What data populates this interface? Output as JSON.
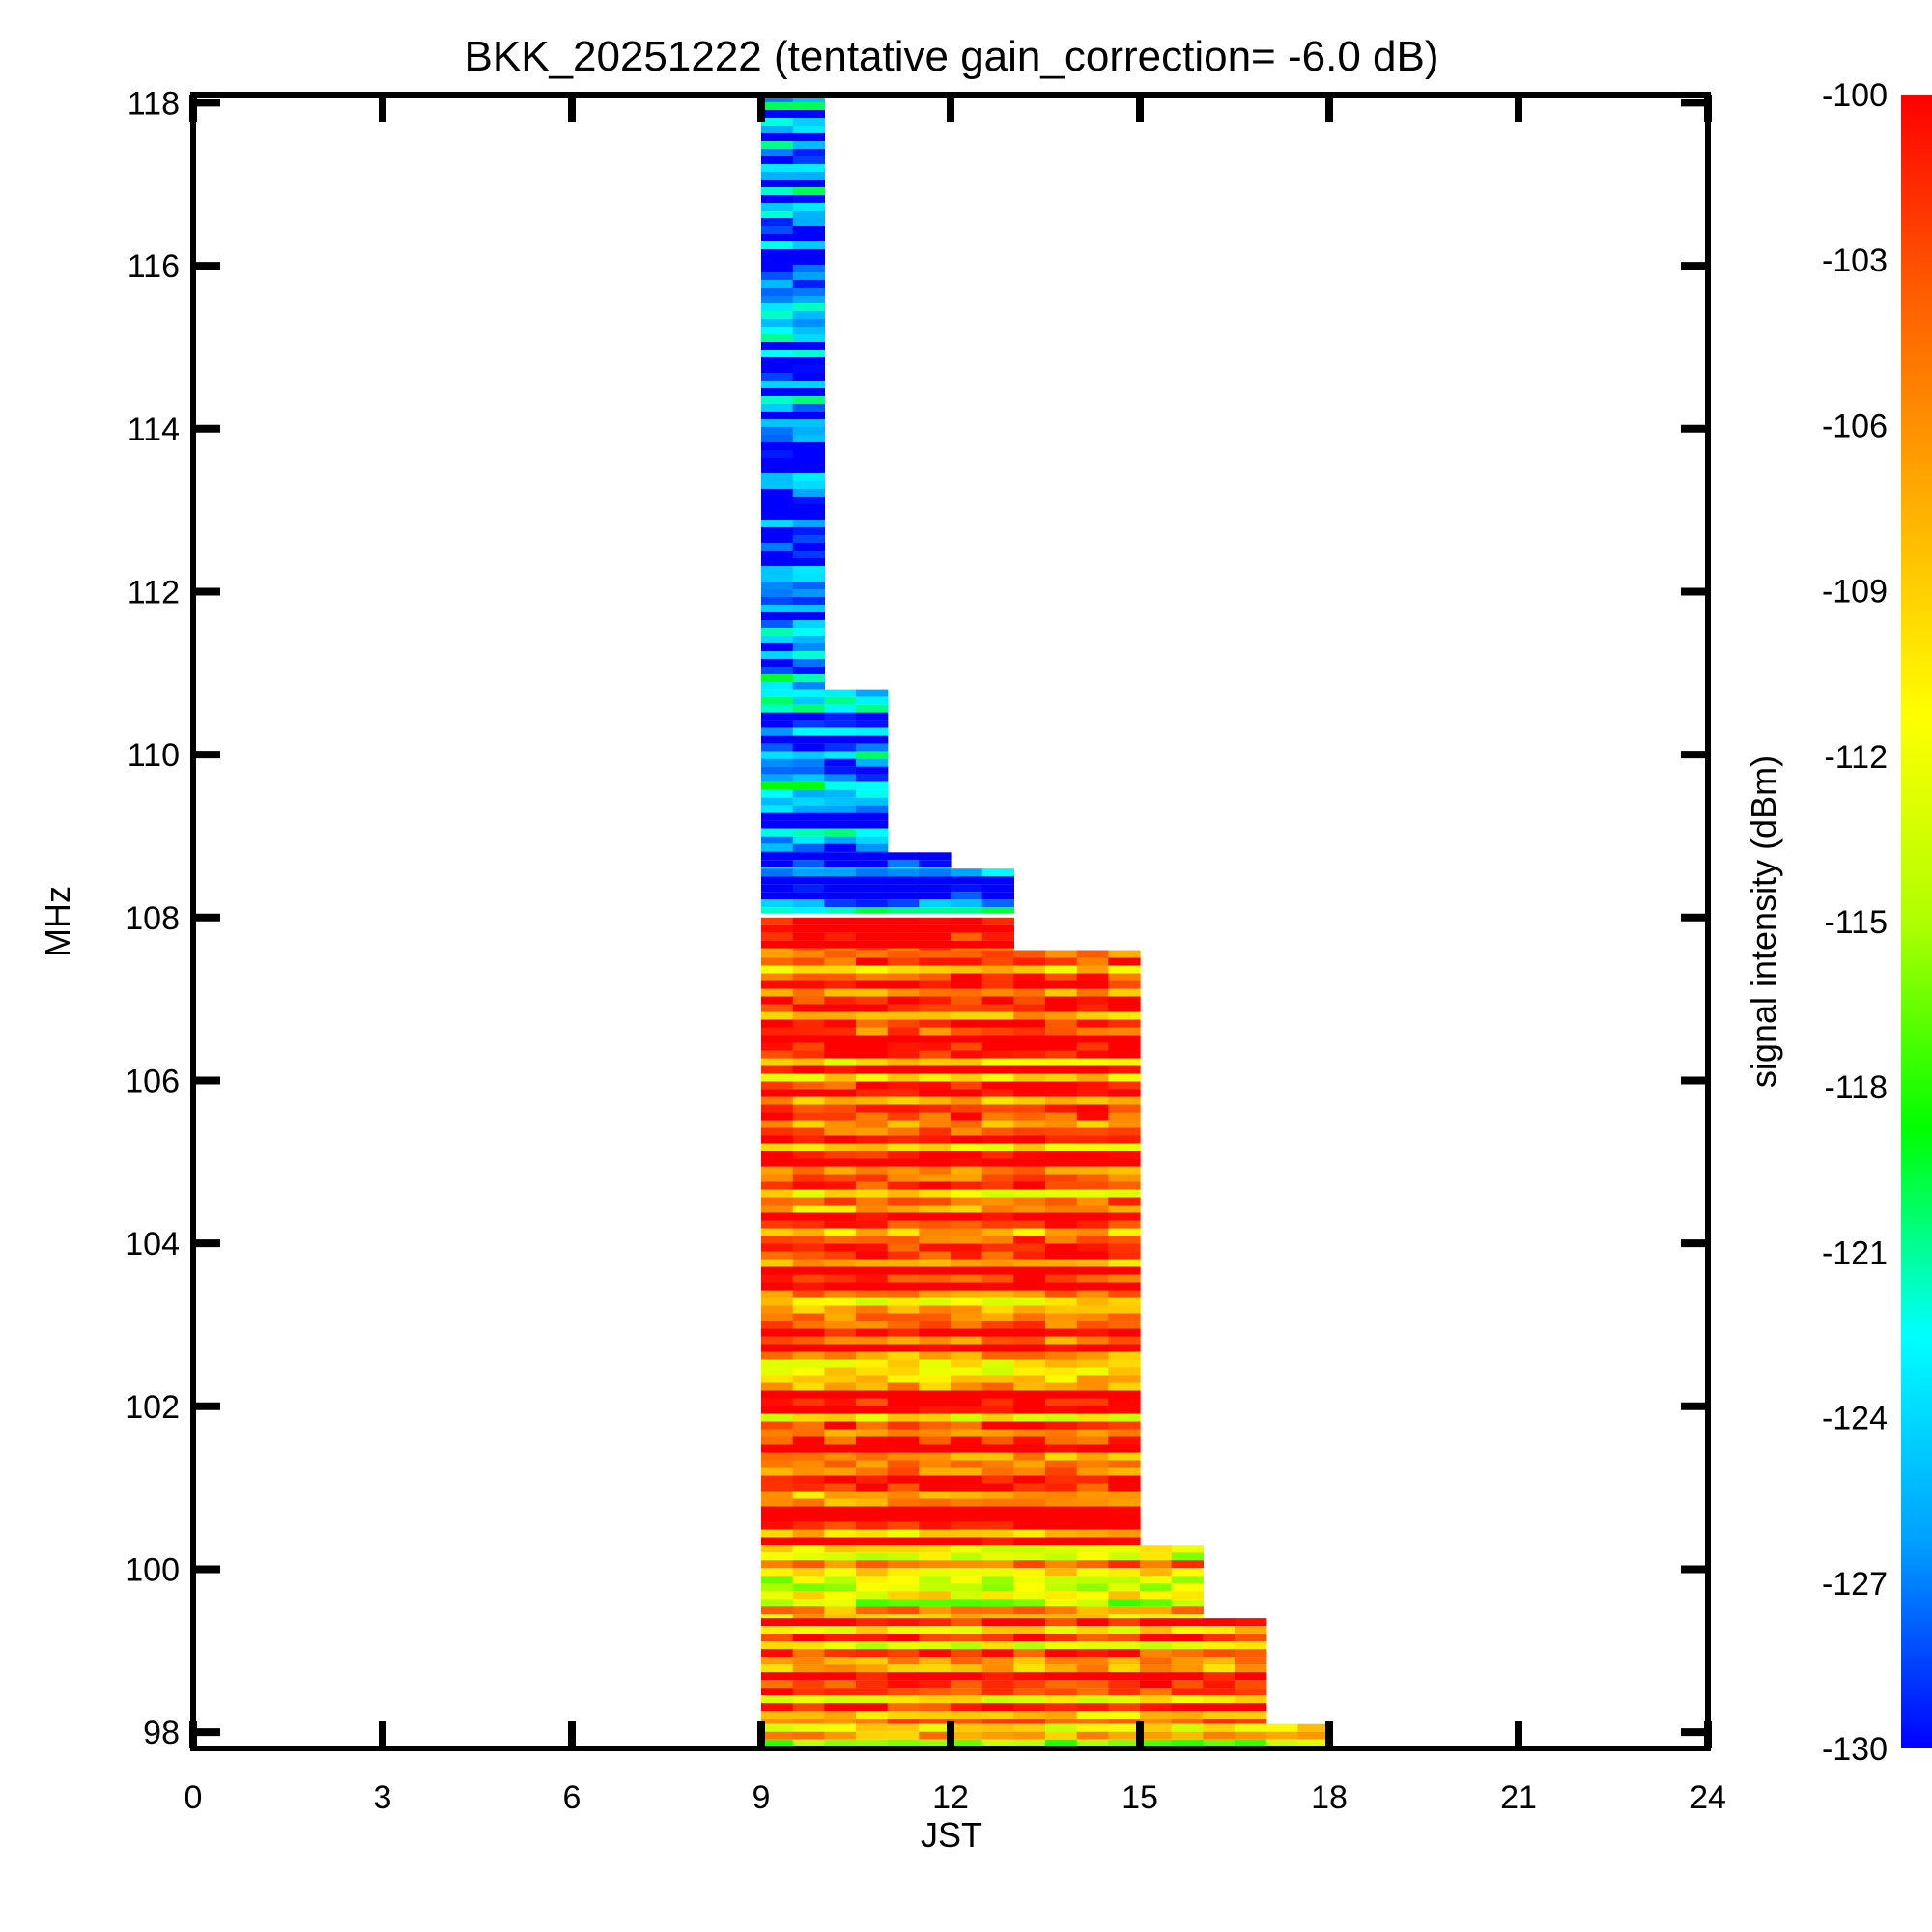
{
  "chart_data": {
    "type": "heatmap",
    "title": "BKK_20251222 (tentative gain_correction= -6.0 dB)",
    "xlabel": "JST",
    "ylabel": "MHz",
    "colorbar_label": "signal intensity (dBm)",
    "xlim": [
      0,
      24
    ],
    "ylim": [
      97.8,
      118.1
    ],
    "xticks": [
      "0",
      "3",
      "6",
      "9",
      "12",
      "15",
      "18",
      "21",
      "24"
    ],
    "yticks": [
      "98",
      "100",
      "102",
      "104",
      "106",
      "108",
      "110",
      "112",
      "114",
      "116",
      "118"
    ],
    "colorbar_range": [
      -130,
      -100
    ],
    "colorbar_ticks": [
      "-100",
      "-103",
      "-106",
      "-109",
      "-112",
      "-115",
      "-118",
      "-121",
      "-124",
      "-127",
      "-130"
    ],
    "colormap": [
      "#0000ff",
      "#00a0ff",
      "#00ffff",
      "#00ff00",
      "#b0ff00",
      "#ffff00",
      "#ffb000",
      "#ff6000",
      "#ff0000"
    ],
    "coverage": [
      {
        "t_start": 9,
        "t_end": 10,
        "f_low": 110.8,
        "f_high": 118.1,
        "level_dbm": -128
      },
      {
        "t_start": 9,
        "t_end": 11,
        "f_low": 108.8,
        "f_high": 110.8,
        "level_dbm": -127.5
      },
      {
        "t_start": 9,
        "t_end": 12,
        "f_low": 108.6,
        "f_high": 108.8,
        "level_dbm": -127.5
      },
      {
        "t_start": 9,
        "t_end": 13,
        "f_low": 108.05,
        "f_high": 108.6,
        "level_dbm": -127
      },
      {
        "t_start": 9,
        "t_end": 13,
        "f_low": 107.6,
        "f_high": 108.0,
        "level_dbm": -100
      },
      {
        "t_start": 9,
        "t_end": 15,
        "f_low": 100.3,
        "f_high": 107.6,
        "level_dbm": -104
      },
      {
        "t_start": 9,
        "t_end": 16,
        "f_low": 99.4,
        "f_high": 100.3,
        "level_dbm": -108
      },
      {
        "t_start": 9,
        "t_end": 17,
        "f_low": 98.1,
        "f_high": 99.4,
        "level_dbm": -105
      },
      {
        "t_start": 9,
        "t_end": 18,
        "f_low": 97.8,
        "f_high": 98.1,
        "level_dbm": -110
      }
    ]
  }
}
